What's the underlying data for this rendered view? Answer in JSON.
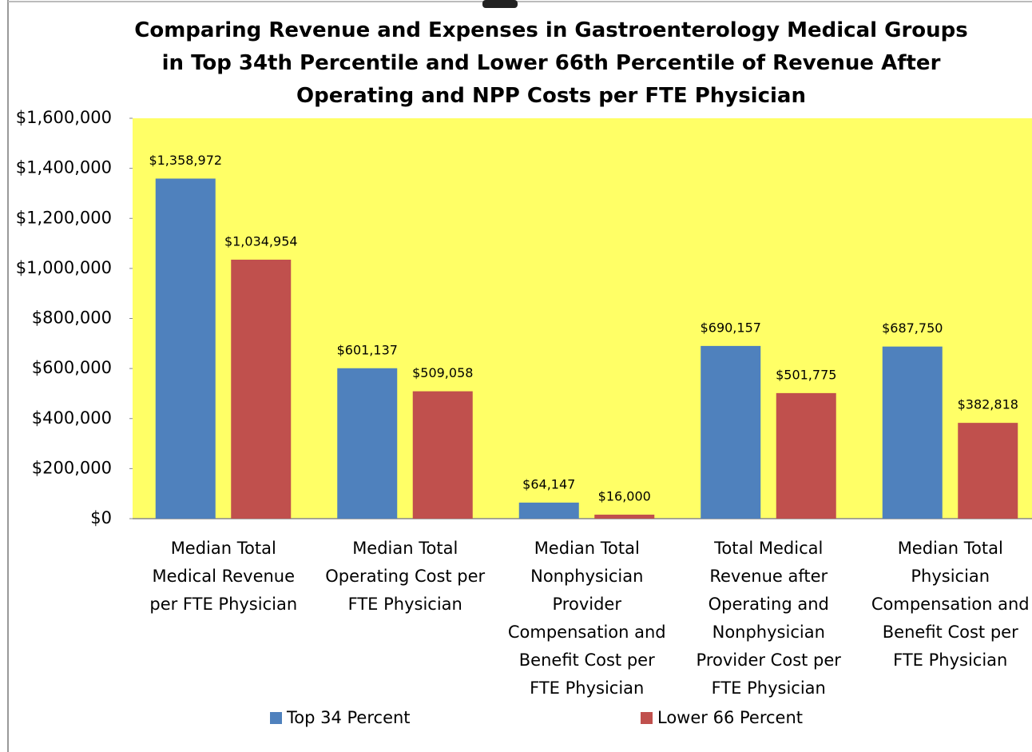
{
  "chart_data": {
    "type": "bar",
    "title": "Comparing Revenue and Expenses in Gastroenterology Medical Groups\nin Top 34th Percentile and Lower 66th Percentile of Revenue After\nOperating and NPP Costs per FTE Physician",
    "categories": [
      "Median Total\nMedical Revenue\nper FTE Physician",
      "Median Total\nOperating Cost per\nFTE Physician",
      "Median Total\nNonphysician\nProvider\nCompensation and\nBenefit Cost per\nFTE Physician",
      "Total Medical\nRevenue after\nOperating and\nNonphysician\nProvider Cost per\nFTE Physician",
      "Median Total\nPhysician\nCompensation and\nBenefit Cost per\nFTE Physician"
    ],
    "series": [
      {
        "name": "Top 34 Percent",
        "color": "#4f81bd",
        "values": [
          1358972,
          601137,
          64147,
          690157,
          687750
        ],
        "value_labels": [
          "$1,358,972",
          "$601,137",
          "$64,147",
          "$690,157",
          "$687,750"
        ]
      },
      {
        "name": "Lower 66 Percent",
        "color": "#c0504d",
        "values": [
          1034954,
          509058,
          16000,
          501775,
          382818
        ],
        "value_labels": [
          "$1,034,954",
          "$509,058",
          "$16,000",
          "$501,775",
          "$382,818"
        ]
      }
    ],
    "ylim": [
      0,
      1600000
    ],
    "yticks": [
      {
        "value": 0,
        "label": "$0"
      },
      {
        "value": 200000,
        "label": "$200,000"
      },
      {
        "value": 400000,
        "label": "$400,000"
      },
      {
        "value": 600000,
        "label": "$600,000"
      },
      {
        "value": 800000,
        "label": "$800,000"
      },
      {
        "value": 1000000,
        "label": "$1,000,000"
      },
      {
        "value": 1200000,
        "label": "$1,200,000"
      },
      {
        "value": 1400000,
        "label": "$1,400,000"
      },
      {
        "value": 1600000,
        "label": "$1,600,000"
      }
    ],
    "plot_background": "#ffff66",
    "legend": "bottom"
  }
}
